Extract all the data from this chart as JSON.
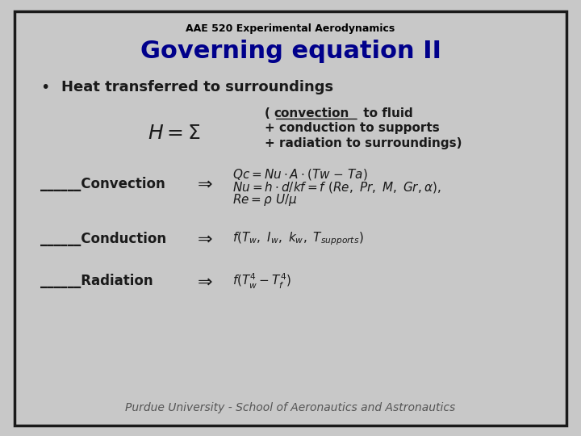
{
  "bg_color": "#c8c8c8",
  "border_color": "#1a1a1a",
  "title_small": "AAE 520 Experimental Aerodynamics",
  "title_large": "Governing equation II",
  "title_large_color": "#00008B",
  "title_small_color": "#000000",
  "bullet_text": "Heat transferred to surroundings",
  "footer": "Purdue University - School of Aeronautics and Astronautics"
}
